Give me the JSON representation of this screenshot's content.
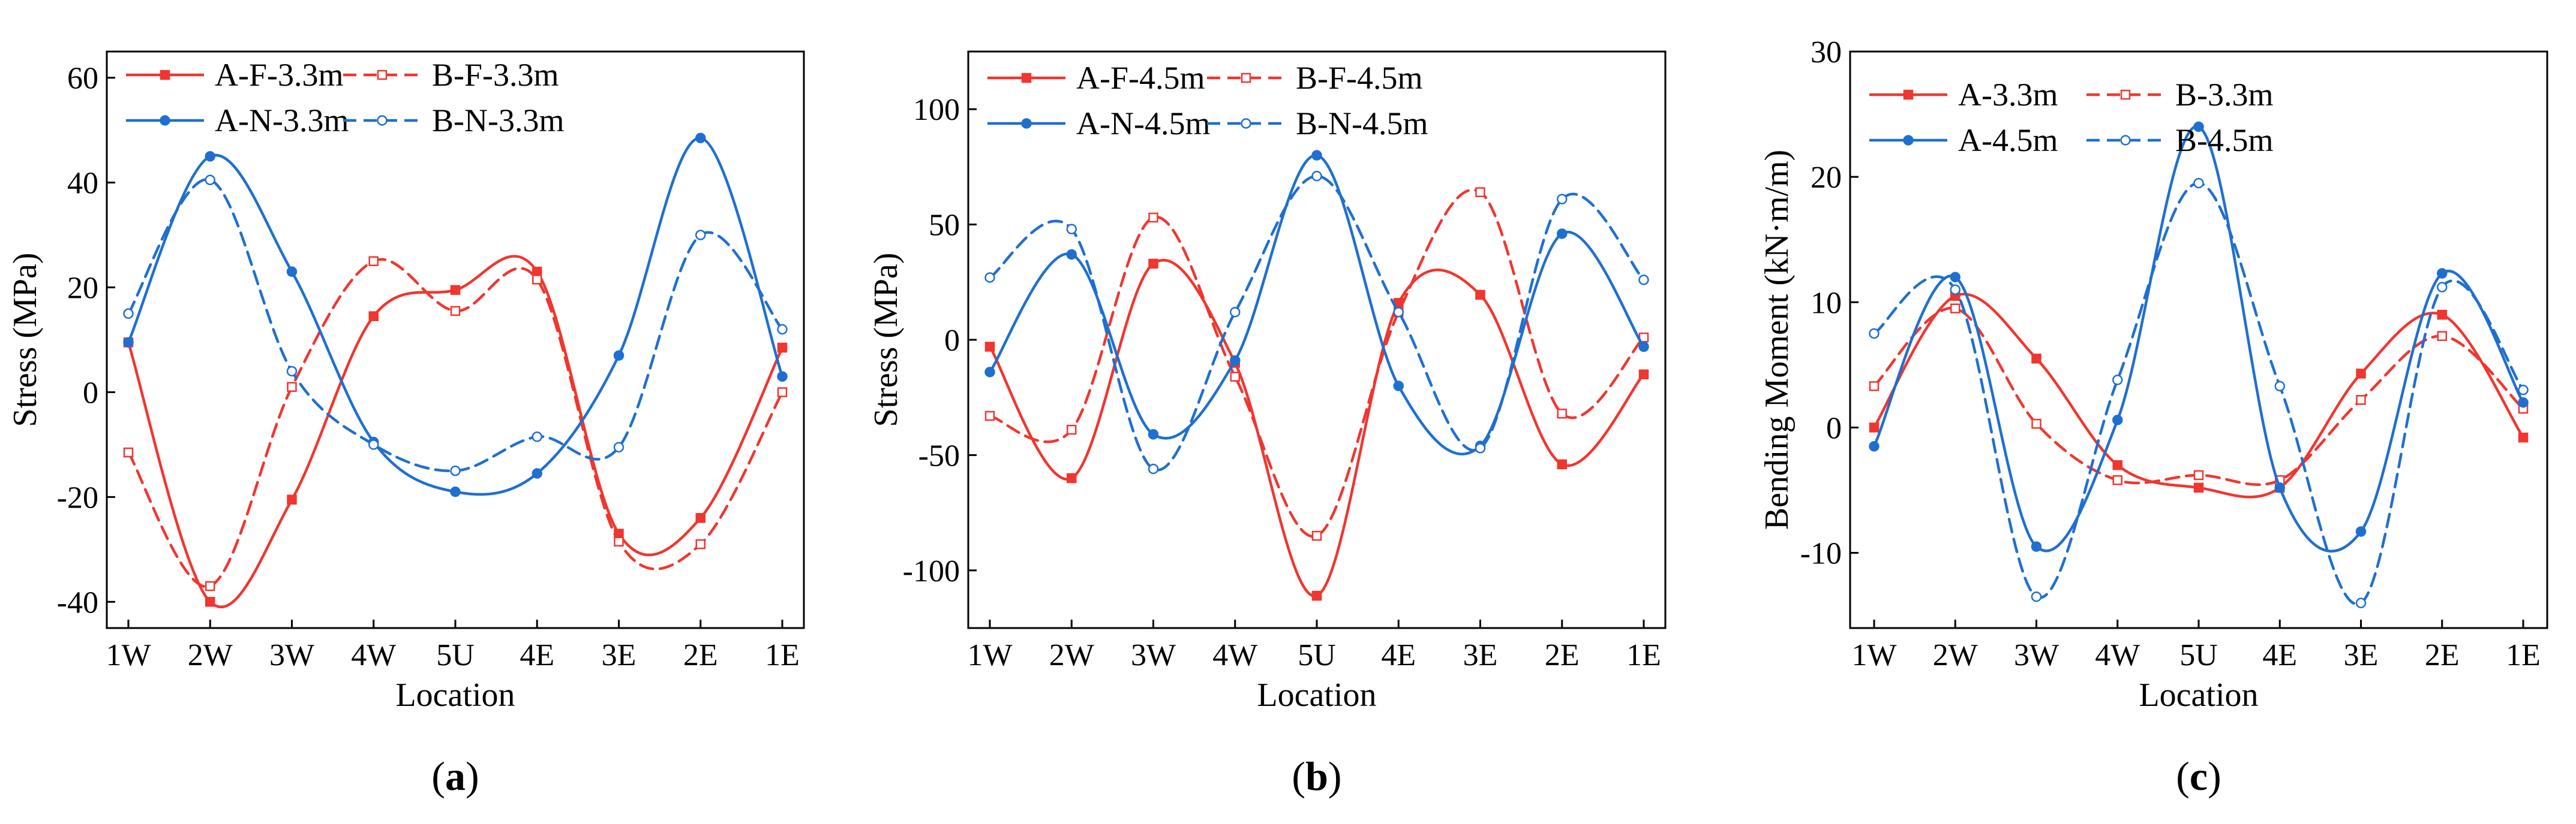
{
  "colors": {
    "red": "#f0362f",
    "blue": "#1f6fd1",
    "axis": "#000000"
  },
  "chart_data": [
    {
      "type": "line",
      "panel": "a",
      "categories": [
        "1W",
        "2W",
        "3W",
        "4W",
        "5U",
        "4E",
        "3E",
        "2E",
        "1E"
      ],
      "xlabel": "Location",
      "ylabel": "Stress (MPa)",
      "ylim": [
        -45,
        65
      ],
      "yticks": [
        -40,
        -20,
        0,
        20,
        40,
        60
      ],
      "series": [
        {
          "name": "A-F-3.3m",
          "color": "#f0362f",
          "dash": false,
          "marker": "square-filled",
          "values": [
            9.5,
            -40,
            -20.5,
            14.5,
            19.5,
            23,
            -27,
            -24,
            8.5
          ]
        },
        {
          "name": "B-F-3.3m",
          "color": "#f0362f",
          "dash": true,
          "marker": "square-open",
          "values": [
            -11.5,
            -37,
            1,
            25,
            15.5,
            21.5,
            -28.5,
            -29,
            0
          ]
        },
        {
          "name": "A-N-3.3m",
          "color": "#1f6fd1",
          "dash": false,
          "marker": "circle-filled",
          "values": [
            9.5,
            45,
            23,
            -9.5,
            -19,
            -15.5,
            7,
            48.5,
            3
          ]
        },
        {
          "name": "B-N-3.3m",
          "color": "#1f6fd1",
          "dash": true,
          "marker": "circle-open",
          "values": [
            15,
            40.5,
            4,
            -10,
            -15,
            -8.5,
            -10.5,
            30,
            12
          ]
        }
      ]
    },
    {
      "type": "line",
      "panel": "b",
      "categories": [
        "1W",
        "2W",
        "3W",
        "4W",
        "5U",
        "4E",
        "3E",
        "2E",
        "1E"
      ],
      "xlabel": "Location",
      "ylabel": "Stress (MPa)",
      "ylim": [
        -125,
        125
      ],
      "yticks": [
        -100,
        -50,
        0,
        50,
        100
      ],
      "series": [
        {
          "name": "A-F-4.5m",
          "color": "#f0362f",
          "dash": false,
          "marker": "square-filled",
          "values": [
            -3,
            -60,
            33,
            -10,
            -111,
            16,
            19.5,
            -54,
            -15
          ]
        },
        {
          "name": "B-F-4.5m",
          "color": "#f0362f",
          "dash": true,
          "marker": "square-open",
          "values": [
            -33,
            -39,
            53,
            -16,
            -85,
            12,
            64,
            -32,
            1
          ]
        },
        {
          "name": "A-N-4.5m",
          "color": "#1f6fd1",
          "dash": false,
          "marker": "circle-filled",
          "values": [
            -14,
            37,
            -41,
            -9,
            80,
            -20,
            -46,
            46,
            -3
          ]
        },
        {
          "name": "B-N-4.5m",
          "color": "#1f6fd1",
          "dash": true,
          "marker": "circle-open",
          "values": [
            27,
            48,
            -56,
            12,
            71,
            12,
            -47,
            61,
            26
          ]
        }
      ]
    },
    {
      "type": "line",
      "panel": "c",
      "categories": [
        "1W",
        "2W",
        "3W",
        "4W",
        "5U",
        "4E",
        "3E",
        "2E",
        "1E"
      ],
      "xlabel": "Location",
      "ylabel": "Bending Moment (kN·m/m)",
      "ylim": [
        -16,
        30
      ],
      "yticks": [
        -10,
        0,
        10,
        20,
        30
      ],
      "series": [
        {
          "name": "A-3.3m",
          "color": "#f0362f",
          "dash": false,
          "marker": "square-filled",
          "values": [
            0,
            10.5,
            5.5,
            -3,
            -4.8,
            -4.8,
            4.3,
            9,
            -0.8
          ]
        },
        {
          "name": "B-3.3m",
          "color": "#f0362f",
          "dash": true,
          "marker": "square-open",
          "values": [
            3.3,
            9.5,
            0.3,
            -4.2,
            -3.8,
            -4.2,
            2.2,
            7.3,
            1.5
          ]
        },
        {
          "name": "A-4.5m",
          "color": "#1f6fd1",
          "dash": false,
          "marker": "circle-filled",
          "values": [
            -1.5,
            12,
            -9.5,
            0.6,
            24,
            -4.8,
            -8.3,
            12.3,
            2
          ]
        },
        {
          "name": "B-4.5m",
          "color": "#1f6fd1",
          "dash": true,
          "marker": "circle-open",
          "values": [
            7.5,
            11,
            -13.5,
            3.8,
            19.5,
            3.3,
            -14,
            11.2,
            3
          ]
        }
      ]
    }
  ],
  "panel_labels": [
    {
      "open": "(",
      "letter": "a",
      "close": ")"
    },
    {
      "open": "(",
      "letter": "b",
      "close": ")"
    },
    {
      "open": "(",
      "letter": "c",
      "close": ")"
    }
  ]
}
